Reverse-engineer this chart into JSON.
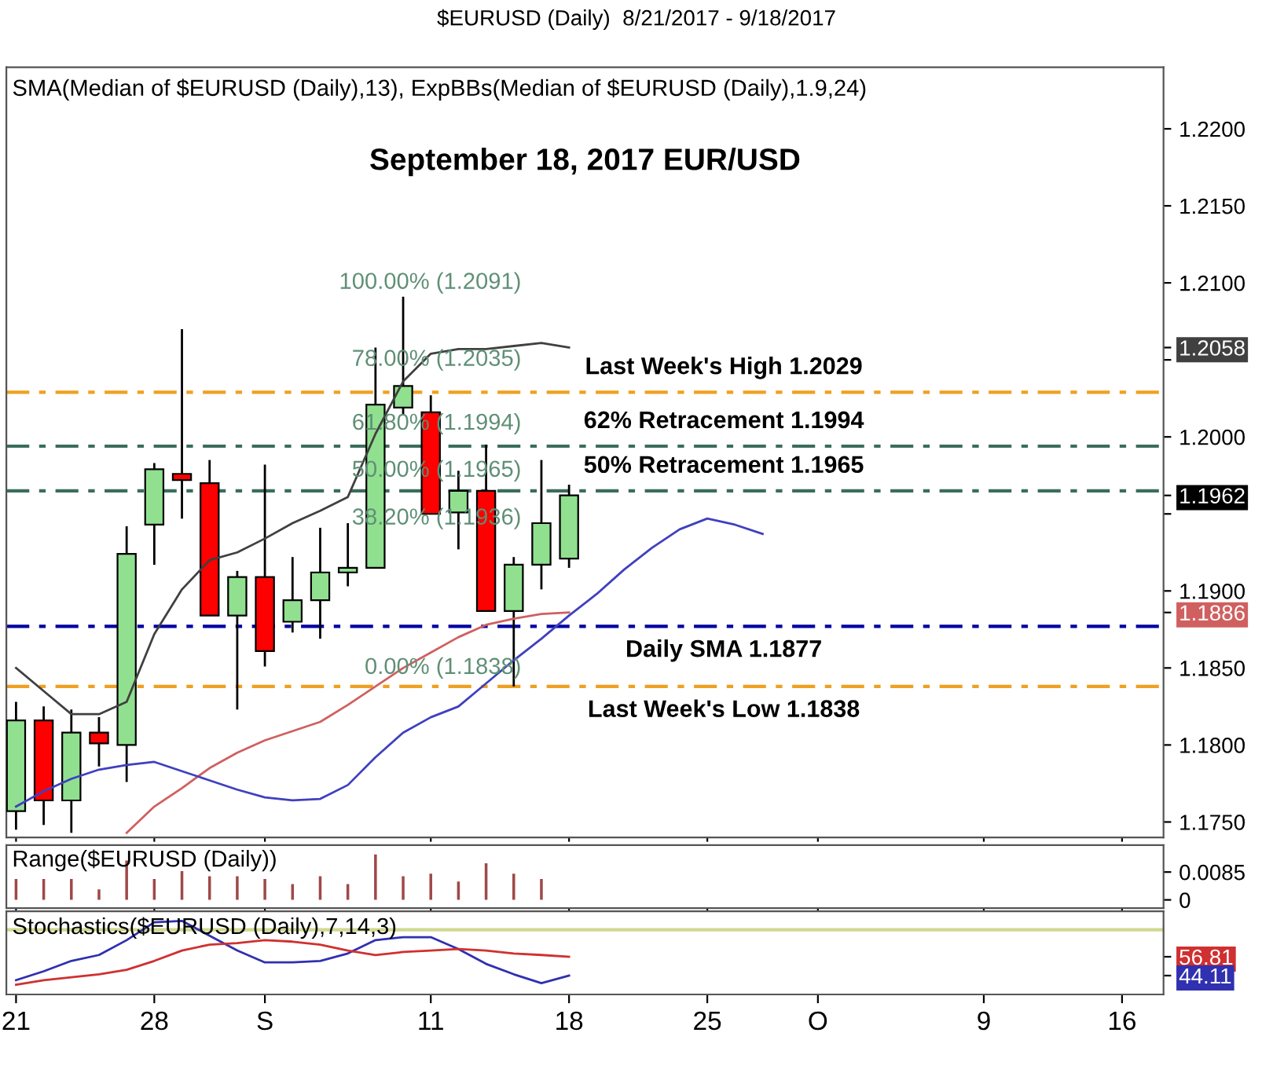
{
  "chart_data": [
    {
      "type": "candlestick",
      "title": "$EURUSD (Daily)  8/21/2017 - 9/18/2017",
      "subtitle": "SMA(Median of $EURUSD (Daily),13), ExpBBs(Median of $EURUSD (Daily),1.9,24)",
      "categories": [
        "21",
        null,
        null,
        null,
        null,
        "28",
        null,
        null,
        null,
        "S",
        null,
        null,
        null,
        null,
        null,
        "11",
        null,
        null,
        null,
        null,
        "18",
        null,
        null,
        null,
        null,
        "25",
        null,
        null,
        null,
        "O",
        null,
        null,
        null,
        null,
        null,
        "9",
        null,
        null,
        null,
        null,
        "16",
        null
      ],
      "ohlc": [
        [
          1.1757,
          1.1828,
          1.1745,
          1.1816
        ],
        [
          1.1816,
          1.1825,
          1.1748,
          1.1764
        ],
        [
          1.1764,
          1.1823,
          1.1743,
          1.1808
        ],
        [
          1.1808,
          1.1818,
          1.1786,
          1.1801
        ],
        [
          1.18,
          1.1942,
          1.1776,
          1.1924
        ],
        [
          1.1943,
          1.1983,
          1.1917,
          1.1979
        ],
        [
          1.1976,
          1.207,
          1.1947,
          1.1972
        ],
        [
          1.197,
          1.1985,
          1.1884,
          1.1884
        ],
        [
          1.1884,
          1.1913,
          1.1823,
          1.1909
        ],
        [
          1.1909,
          1.1982,
          1.1851,
          1.1861
        ],
        [
          1.188,
          1.1922,
          1.1873,
          1.1894
        ],
        [
          1.1894,
          1.1941,
          1.1869,
          1.1912
        ],
        [
          1.1912,
          1.1944,
          1.1903,
          1.1915
        ],
        [
          1.1915,
          1.2058,
          1.1915,
          1.2021
        ],
        [
          1.2019,
          1.2091,
          1.2014,
          1.2033
        ],
        [
          1.2016,
          1.2027,
          1.195,
          1.195
        ],
        [
          1.1951,
          1.1978,
          1.1927,
          1.1965
        ],
        [
          1.1965,
          1.1995,
          1.1887,
          1.1887
        ],
        [
          1.1887,
          1.1922,
          1.1838,
          1.1917
        ],
        [
          1.1917,
          1.1985,
          1.1901,
          1.1944
        ],
        [
          1.1921,
          1.1969,
          1.1915,
          1.1962
        ],
        null,
        null,
        null,
        null,
        null,
        null,
        null,
        null,
        null,
        null,
        null,
        null,
        null,
        null,
        null,
        null,
        null,
        null,
        null,
        null,
        null
      ],
      "colors": [
        "#90e090",
        "#ff0000",
        "#90e090",
        "#ff0000",
        "#90e090",
        "#90e090",
        "#ff0000",
        "#ff0000",
        "#90e090",
        "#ff0000",
        "#90e090",
        "#90e090",
        "#90e090",
        "#90e090",
        "#90e090",
        "#ff0000",
        "#90e090",
        "#ff0000",
        "#90e090",
        "#90e090",
        "#90e090",
        null,
        null,
        null,
        null,
        null,
        null,
        null,
        null,
        null,
        null,
        null,
        null,
        null,
        null,
        null,
        null,
        null,
        null,
        null,
        null,
        null
      ],
      "series": [
        {
          "type": "line",
          "color": "#404040",
          "values": [
            1.185,
            1.1835,
            1.182,
            1.182,
            1.1828,
            1.1872,
            1.1901,
            1.192,
            1.1925,
            1.1934,
            1.1944,
            1.1952,
            1.1961,
            1.2002,
            1.2036,
            1.2054,
            1.2057,
            1.2057,
            1.2059,
            1.2061,
            1.2058,
            null,
            null,
            null,
            null,
            null,
            null,
            null,
            null,
            null,
            null,
            null,
            null,
            null,
            null,
            null,
            null,
            null,
            null,
            null,
            null,
            null
          ]
        },
        {
          "type": "line",
          "color": "#d06060",
          "values": [
            null,
            null,
            null,
            null,
            1.1743,
            1.176,
            1.1772,
            1.1785,
            1.1795,
            1.1803,
            1.1809,
            1.1815,
            1.1826,
            1.1838,
            1.185,
            1.186,
            1.187,
            1.1878,
            1.1882,
            1.1885,
            1.1886,
            null,
            null,
            null,
            null,
            null,
            null,
            null,
            null,
            null,
            null,
            null,
            null,
            null,
            null,
            null,
            null,
            null,
            null,
            null,
            null,
            null
          ]
        },
        {
          "type": "line",
          "color": "#4040c0",
          "values": [
            1.176,
            1.177,
            1.1778,
            1.1784,
            1.1787,
            1.1789,
            1.1783,
            1.1777,
            1.1771,
            1.1766,
            1.1764,
            1.1765,
            1.1774,
            1.1792,
            1.1808,
            1.1818,
            1.1825,
            1.184,
            1.1855,
            1.1869,
            1.1884,
            1.1898,
            1.1914,
            1.1928,
            1.194,
            1.1947,
            1.1943,
            1.1937,
            null,
            null,
            null,
            null,
            null,
            null,
            null,
            null,
            null,
            null,
            null,
            null,
            null,
            null
          ]
        }
      ],
      "ylim": [
        1.174,
        1.224
      ],
      "yticks": [
        {
          "value": 1.175,
          "label": "1.1750"
        },
        {
          "value": 1.18,
          "label": "1.1800"
        },
        {
          "value": 1.185,
          "label": "1.1850"
        },
        {
          "value": 1.1886,
          "label": "1.1886"
        },
        {
          "value": 1.19,
          "label": "1.1900"
        },
        {
          "value": 1.195,
          "label": null
        },
        {
          "value": 1.1962,
          "label": "1.1962"
        },
        {
          "value": 1.2,
          "label": "1.2000"
        },
        {
          "value": 1.205,
          "label": null
        },
        {
          "value": 1.2058,
          "label": "1.2058"
        },
        {
          "value": 1.21,
          "label": "1.2100"
        },
        {
          "value": 1.215,
          "label": "1.2150"
        },
        {
          "value": 1.22,
          "label": "1.2200"
        }
      ],
      "ref_lines": [
        {
          "axis": "y",
          "value": 1.2029,
          "label": "Last Week's High 1.2029",
          "color": "#f0a020",
          "line_style": "dashed"
        },
        {
          "axis": "y",
          "value": 1.1994,
          "label": "62% Retracement 1.1994",
          "color": "#3a6e5a",
          "line_style": "dashed"
        },
        {
          "axis": "y",
          "value": 1.1965,
          "label": "50% Retracement 1.1965",
          "color": "#3a6e5a",
          "line_style": "dashed"
        },
        {
          "axis": "y",
          "value": 1.1877,
          "label": "Daily SMA 1.1877",
          "color": "#0000a0",
          "line_style": "dashed"
        },
        {
          "axis": "y",
          "value": 1.1838,
          "label": "Last Week's Low 1.1838",
          "color": "#f0a020",
          "line_style": "dashed"
        }
      ],
      "annotations": [
        "September 18, 2017 EUR/USD",
        "100.00% (1.2091)",
        "78.00% (1.2035)",
        "61.80% (1.1994)",
        "50.00% (1.1965)",
        "38.20% (1.1936)",
        "0.00% (1.1838)"
      ],
      "tick_labels": "y",
      "legend": false,
      "grid": false
    },
    {
      "type": "bar",
      "title": "Range($EURUSD (Daily))",
      "categories": [
        "21",
        null,
        null,
        null,
        null,
        "28",
        null,
        null,
        null,
        "S",
        null,
        null,
        null,
        null,
        null,
        "11",
        null,
        null,
        null,
        null,
        "18",
        null,
        null,
        null,
        null,
        "25",
        null,
        null,
        null,
        "O",
        null,
        null,
        null,
        null,
        null,
        "9",
        null,
        null,
        null,
        null,
        "16",
        null
      ],
      "values": [
        0.0064,
        0.0064,
        0.0064,
        0.0032,
        0.012,
        0.0064,
        0.0088,
        0.0072,
        0.0072,
        0.0064,
        0.0048,
        0.0072,
        0.0048,
        0.0139,
        0.0072,
        0.008,
        0.0056,
        0.0112,
        0.008,
        0.0064,
        null,
        null,
        null,
        null,
        null,
        null,
        null,
        null,
        null,
        null,
        null,
        null,
        null,
        null,
        null,
        null,
        null,
        null,
        null,
        null,
        null,
        null
      ],
      "color": "#a04848",
      "ylim": [
        -0.0025,
        0.0167
      ],
      "yticks": [
        0,
        {
          "value": 0.0085,
          "label": "0.0085"
        }
      ],
      "tick_labels": "y",
      "legend": false,
      "grid": false
    },
    {
      "type": "line",
      "title": "Stochastics($EURUSD (Daily),7,14,3)",
      "categories": [
        "21",
        null,
        null,
        null,
        null,
        "28",
        null,
        null,
        null,
        "S",
        null,
        null,
        null,
        null,
        null,
        "11",
        null,
        null,
        null,
        null,
        "18",
        null,
        null,
        null,
        null,
        "25",
        null,
        null,
        null,
        "O",
        null,
        null,
        null,
        null,
        null,
        "9",
        null,
        null,
        null,
        null,
        "16",
        null
      ],
      "series": [
        {
          "color": "#3030b0",
          "values": [
            41,
            47,
            54,
            58,
            68,
            80,
            81,
            71,
            61,
            53,
            53,
            54,
            59,
            68,
            70,
            70,
            62,
            52,
            45,
            39,
            44.11,
            null,
            null,
            null,
            null,
            null,
            null,
            null,
            null,
            null,
            null,
            null,
            null,
            null,
            null,
            null,
            null,
            null,
            null,
            null,
            null,
            null
          ]
        },
        {
          "color": "#d03030",
          "values": [
            38,
            41,
            43,
            45,
            48,
            54,
            61,
            65,
            66,
            68,
            67,
            65,
            61,
            58,
            60,
            61,
            62,
            61,
            59,
            58,
            56.81,
            null,
            null,
            null,
            null,
            null,
            null,
            null,
            null,
            null,
            null,
            null,
            null,
            null,
            null,
            null,
            null,
            null,
            null,
            null,
            null,
            null
          ]
        }
      ],
      "ylim": [
        31.4,
        87.5
      ],
      "yticks": [
        {
          "value": 56.81,
          "label": "56.81"
        },
        {
          "value": 44.11,
          "label": "44.11"
        }
      ],
      "ref_lines": [
        {
          "axis": "y",
          "value": 75,
          "color": "#d0d890",
          "line_style": "solid"
        }
      ],
      "legend": false,
      "grid": false
    }
  ]
}
